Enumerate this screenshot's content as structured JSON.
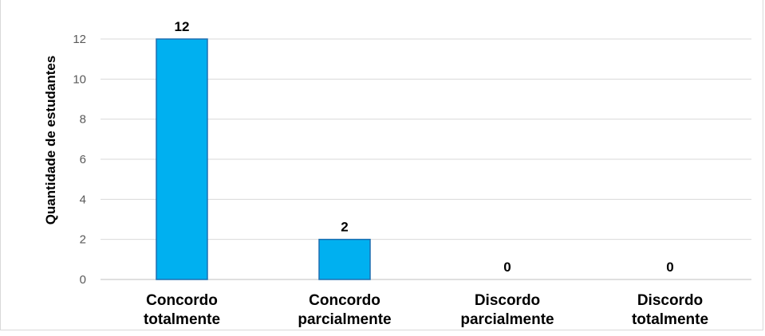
{
  "chart_data": {
    "type": "bar",
    "title": "",
    "xlabel": "",
    "ylabel": "Quantidade de estudantes",
    "categories": [
      [
        "Concordo",
        "totalmente"
      ],
      [
        "Concordo",
        "parcialmente"
      ],
      [
        "Discordo",
        "parcialmente"
      ],
      [
        "Discordo",
        "totalmente"
      ]
    ],
    "values": [
      12,
      2,
      0,
      0
    ],
    "data_labels": [
      "12",
      "2",
      "0",
      "0"
    ],
    "ylim": [
      0,
      12
    ],
    "yticks": [
      0,
      2,
      4,
      6,
      8,
      10,
      12
    ],
    "ytick_labels": [
      "0",
      "2",
      "4",
      "6",
      "8",
      "10",
      "12"
    ],
    "grid": true,
    "legend": "none",
    "colors": {
      "bar_fill": "#00b0f0",
      "bar_stroke": "#1f6fb0",
      "grid": "#d9d9d9",
      "axis": "#bfbfbf",
      "text": "#000000",
      "tick_text": "#595959"
    }
  }
}
